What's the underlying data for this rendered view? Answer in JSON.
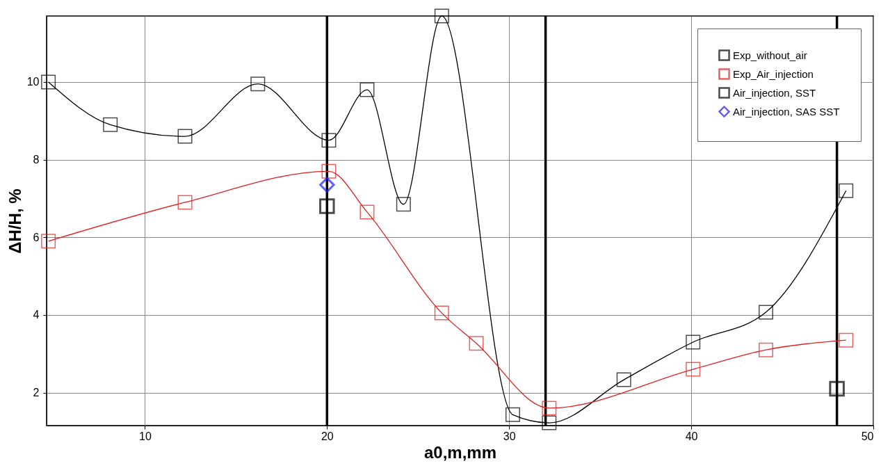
{
  "chart_data": {
    "type": "line",
    "xlabel": "a0,m,mm",
    "ylabel": "ΔH/H, %",
    "xlim": [
      4.6,
      50
    ],
    "ylim": [
      1.15,
      11.7
    ],
    "xticks": [
      10,
      20,
      30,
      40,
      50
    ],
    "yticks": [
      2,
      4,
      6,
      8,
      10
    ],
    "grid": true,
    "legend": "top right",
    "series": [
      {
        "name": "Exp_without_air",
        "color": "#000000",
        "marker": "square",
        "x": [
          4.7,
          8.1,
          12.2,
          16.2,
          20.1,
          22.2,
          24.2,
          26.3,
          30.2,
          32.2,
          36.3,
          40.1,
          44.1,
          48.5
        ],
        "values": [
          10,
          8.9,
          8.6,
          9.95,
          8.5,
          9.8,
          6.85,
          11.7,
          1.43,
          1.22,
          2.33,
          3.3,
          4.07,
          7.2
        ]
      },
      {
        "name": "Exp_Air_injection",
        "color": "#e02020",
        "marker": "square",
        "x": [
          4.7,
          12.2,
          20.1,
          22.2,
          26.3,
          28.2,
          32.2,
          40.1,
          44.1,
          48.5
        ],
        "values": [
          5.9,
          6.9,
          7.7,
          6.65,
          4.05,
          3.27,
          1.6,
          2.6,
          3.1,
          3.35
        ]
      },
      {
        "name": "Air_injection, SST",
        "type": "scatter",
        "color": "#000000",
        "marker": "square",
        "x": [
          20,
          48
        ],
        "values": [
          6.8,
          2.1
        ]
      },
      {
        "name": "Air_injection, SAS SST",
        "type": "scatter",
        "color": "#1f1fff",
        "marker": "diamond",
        "x": [
          20
        ],
        "values": [
          7.35
        ]
      }
    ],
    "ref_lines": [
      {
        "axis": "x",
        "value": 20,
        "color": "#000000"
      },
      {
        "axis": "x",
        "value": 32,
        "color": "#000000"
      },
      {
        "axis": "x",
        "value": 48,
        "color": "#000000"
      }
    ]
  }
}
